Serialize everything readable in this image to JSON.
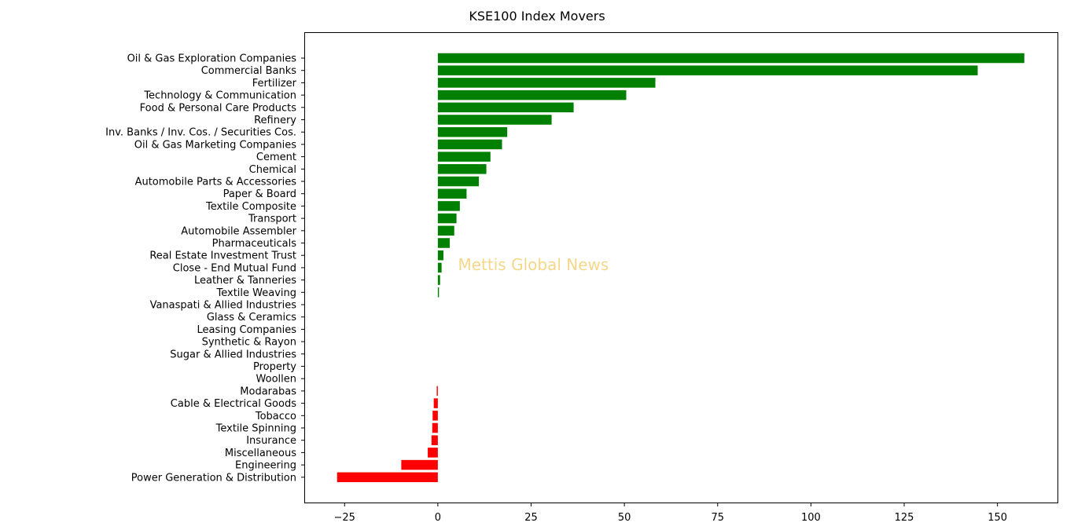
{
  "chart_data": {
    "type": "bar",
    "orientation": "horizontal",
    "title": "KSE100 Index Movers",
    "watermark": "Mettis Global News",
    "xlim": [
      -35.8,
      166.3
    ],
    "x_ticks": [
      -25,
      0,
      25,
      50,
      75,
      100,
      125,
      150
    ],
    "grid": false,
    "positive_color": "#008000",
    "negative_color": "#ff0000",
    "watermark_color": "#f5d78a",
    "categories": [
      "Oil & Gas Exploration Companies",
      "Commercial Banks",
      "Fertilizer",
      "Technology & Communication",
      "Food & Personal Care Products",
      "Refinery",
      "Inv. Banks / Inv. Cos. / Securities Cos.",
      "Oil & Gas Marketing Companies",
      "Cement",
      "Chemical",
      "Automobile Parts & Accessories",
      "Paper & Board",
      "Textile Composite",
      "Transport",
      "Automobile Assembler",
      "Pharmaceuticals",
      "Real Estate Investment Trust",
      "Close - End Mutual Fund",
      "Leather & Tanneries",
      "Textile Weaving",
      "Vanaspati & Allied Industries",
      "Glass & Ceramics",
      "Leasing Companies",
      "Synthetic & Rayon",
      "Sugar & Allied Industries",
      "Property",
      "Woollen",
      "Modarabas",
      "Cable & Electrical Goods",
      "Tobacco",
      "Textile Spinning",
      "Insurance",
      "Miscellaneous",
      "Engineering",
      "Power Generation & Distribution"
    ],
    "values": [
      157.2,
      144.7,
      58.3,
      50.5,
      36.4,
      30.5,
      18.6,
      17.2,
      14.1,
      13.0,
      11.0,
      7.7,
      5.9,
      5.0,
      4.4,
      3.2,
      1.5,
      1.0,
      0.6,
      0.3,
      0,
      0,
      0,
      0,
      0,
      0,
      0,
      -0.3,
      -1.1,
      -1.4,
      -1.5,
      -1.7,
      -2.7,
      -9.8,
      -27.0
    ]
  }
}
